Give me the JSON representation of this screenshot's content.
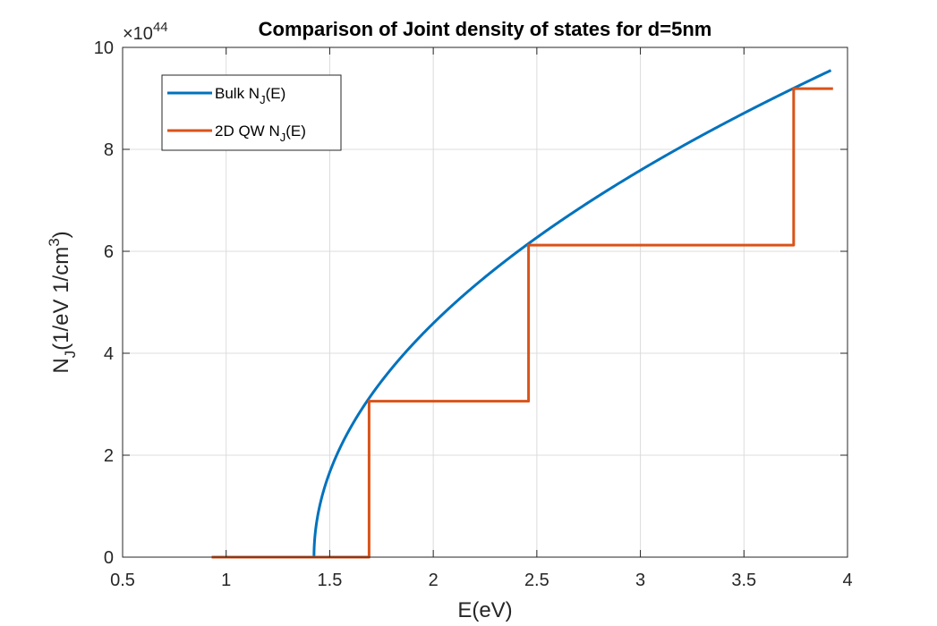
{
  "chart_data": {
    "type": "line",
    "title": "Comparison of Joint density of states for d=5nm",
    "xlabel": {
      "main": "E(eV)"
    },
    "ylabel": {
      "pre": "N",
      "sub": "J",
      "mid": "(1/eV 1/cm",
      "sup": "3",
      "post": ")"
    },
    "y_exponent": {
      "base": "×10",
      "power": "44"
    },
    "xlim": [
      0.5,
      4
    ],
    "ylim": [
      0,
      10
    ],
    "x_ticks": [
      "0.5",
      "1",
      "1.5",
      "2",
      "2.5",
      "3",
      "3.5",
      "4"
    ],
    "y_ticks": [
      "0",
      "2",
      "4",
      "6",
      "8",
      "10"
    ],
    "grid": true,
    "legend_position": "top-left",
    "series": [
      {
        "name": {
          "pre": "Bulk N",
          "sub": "J",
          "post": "(E)"
        },
        "color": "#0072BD",
        "kind": "sqrt",
        "x_start": 1.424,
        "x_end": 3.92,
        "y_end": 9.55
      },
      {
        "name": {
          "pre": "2D QW N",
          "sub": "J",
          "post": "(E)"
        },
        "color": "#D95319",
        "kind": "step",
        "points": [
          [
            0.93,
            0
          ],
          [
            1.69,
            0
          ],
          [
            1.69,
            3.06
          ],
          [
            2.46,
            3.06
          ],
          [
            2.46,
            6.12
          ],
          [
            3.74,
            6.12
          ],
          [
            3.74,
            9.19
          ],
          [
            3.93,
            9.19
          ]
        ]
      }
    ]
  }
}
